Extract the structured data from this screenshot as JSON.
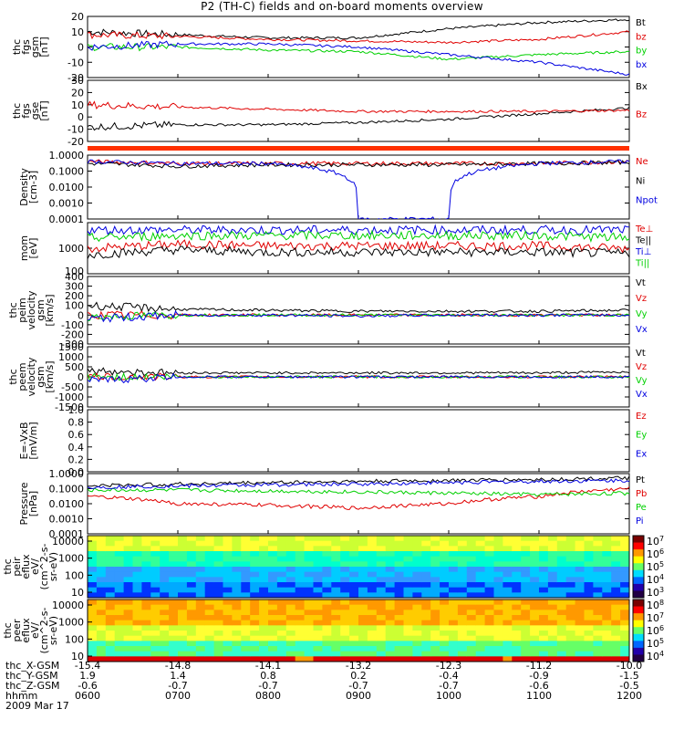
{
  "title": "P2 (TH-C) fields and on-board moments overview",
  "footer": {
    "row_labels": [
      "thc_X-GSM",
      "thc_Y-GSM",
      "thc_Z-GSM",
      "hhmm",
      "2009 Mar 17"
    ],
    "x_gsm": [
      "-15.4",
      "-14.8",
      "-14.1",
      "-13.2",
      "-12.3",
      "-11.2",
      "-10.0"
    ],
    "y_gsm": [
      "1.9",
      "1.4",
      "0.8",
      "0.2",
      "-0.4",
      "-0.9",
      "-1.5"
    ],
    "z_gsm": [
      "-0.6",
      "-0.7",
      "-0.7",
      "-0.7",
      "-0.7",
      "-0.6",
      "-0.5"
    ],
    "hhmm": [
      "0600",
      "0700",
      "0800",
      "0900",
      "1000",
      "1100",
      "1200"
    ]
  },
  "colors": {
    "black": "#000000",
    "red": "#e00000",
    "green": "#00d000",
    "blue": "#0000e0",
    "orange": "#ff3000"
  },
  "chart_data": [
    {
      "type": "line",
      "panel": "fgs_gsm",
      "ylabel_lines": [
        "thc",
        "fgs",
        "gsm",
        "[nT]"
      ],
      "ylim": [
        -20,
        20
      ],
      "yticks": [
        "20",
        "10",
        "0",
        "-10",
        "-20"
      ],
      "x": [
        "0600",
        "0700",
        "0800",
        "0900",
        "1000",
        "1100",
        "1200"
      ],
      "series": [
        {
          "name": "Bt",
          "color": "#000000",
          "values": [
            10,
            8,
            6,
            6,
            12,
            16,
            18
          ]
        },
        {
          "name": "bz",
          "color": "#e00000",
          "values": [
            8,
            7,
            5,
            4,
            3,
            5,
            10
          ]
        },
        {
          "name": "by",
          "color": "#00d000",
          "values": [
            0,
            0,
            -2,
            -3,
            -8,
            -5,
            -3
          ]
        },
        {
          "name": "bx",
          "color": "#0000e0",
          "values": [
            0,
            2,
            2,
            0,
            -5,
            -10,
            -18
          ]
        }
      ]
    },
    {
      "type": "line",
      "panel": "fgs_gse",
      "ylabel_lines": [
        "thc",
        "fgs",
        "gse",
        "[nT]"
      ],
      "ylim": [
        -25,
        30
      ],
      "yticks": [
        "30",
        "20",
        "10",
        "0",
        "-10",
        "-20"
      ],
      "x": [
        "0600",
        "0700",
        "0800",
        "0900",
        "1000",
        "1100",
        "1200"
      ],
      "series": [
        {
          "name": "Bx",
          "color": "#000000",
          "values": [
            -12,
            -10,
            -10,
            -8,
            -5,
            0,
            5
          ]
        },
        {
          "name": "Bz",
          "color": "#e00000",
          "values": [
            8,
            6,
            4,
            2,
            2,
            2,
            3
          ]
        }
      ]
    },
    {
      "type": "line",
      "panel": "density",
      "ylabel_lines": [
        "Density",
        "[cm-3]"
      ],
      "scale": "log",
      "ylim": [
        0.0001,
        1.0
      ],
      "yticks": [
        "1.0000",
        "0.1000",
        "0.0100",
        "0.0010",
        "0.0001"
      ],
      "x": [
        "0600",
        "0700",
        "0800",
        "0900",
        "1000",
        "1100",
        "1200"
      ],
      "series": [
        {
          "name": "Ne",
          "color": "#e00000",
          "values": [
            0.4,
            0.3,
            0.3,
            0.3,
            0.3,
            0.3,
            0.4
          ]
        },
        {
          "name": "Ni",
          "color": "#000000",
          "values": [
            0.3,
            0.2,
            0.25,
            0.25,
            0.25,
            0.3,
            0.35
          ]
        },
        {
          "name": "Npot",
          "color": "#0000e0",
          "values": [
            0.4,
            0.3,
            0.3,
            0.0001,
            0.0001,
            0.3,
            0.4
          ]
        }
      ]
    },
    {
      "type": "line",
      "panel": "temperature",
      "ylabel_lines": [
        "mom",
        "[eV]"
      ],
      "scale": "log",
      "yticks": [
        "1000"
      ],
      "x": [
        "0600",
        "0700",
        "0800",
        "0900",
        "1000",
        "1100",
        "1200"
      ],
      "series": [
        {
          "name": "Te⊥",
          "color": "#e00000",
          "values": [
            1500,
            2000,
            1800,
            1800,
            1800,
            1800,
            1500
          ]
        },
        {
          "name": "Te||",
          "color": "#000000",
          "values": [
            1000,
            1400,
            1200,
            1200,
            1200,
            1200,
            1100
          ]
        },
        {
          "name": "Ti⊥",
          "color": "#0000e0",
          "values": [
            5000,
            5000,
            5000,
            5000,
            5000,
            5000,
            5000
          ]
        },
        {
          "name": "Ti||",
          "color": "#00d000",
          "values": [
            3000,
            3500,
            3500,
            3500,
            3500,
            3500,
            3000
          ]
        }
      ]
    },
    {
      "type": "line",
      "panel": "peim_velocity",
      "ylabel_lines": [
        "thc",
        "peim",
        "velocity",
        "gsm",
        "[km/s]"
      ],
      "ylim": [
        -300,
        400
      ],
      "yticks": [
        "400",
        "300",
        "200",
        "100",
        "0",
        "-100",
        "-200",
        "-300"
      ],
      "extra_top_tick": "100",
      "x": [
        "0600",
        "0700",
        "0800",
        "0900",
        "1000",
        "1100",
        "1200"
      ],
      "series": [
        {
          "name": "Vt",
          "color": "#000000",
          "values": [
            100,
            60,
            50,
            40,
            40,
            40,
            50
          ]
        },
        {
          "name": "Vz",
          "color": "#e00000",
          "values": [
            0,
            0,
            0,
            0,
            0,
            0,
            0
          ]
        },
        {
          "name": "Vy",
          "color": "#00d000",
          "values": [
            -20,
            0,
            0,
            0,
            0,
            0,
            0
          ]
        },
        {
          "name": "Vx",
          "color": "#0000e0",
          "values": [
            -40,
            0,
            0,
            -10,
            0,
            0,
            0
          ]
        }
      ]
    },
    {
      "type": "line",
      "panel": "peem_velocity",
      "ylabel_lines": [
        "thc",
        "peem",
        "velocity",
        "gsm",
        "[km/s]"
      ],
      "ylim": [
        -1500,
        1500
      ],
      "yticks": [
        "1500",
        "1000",
        "500",
        "0",
        "-500",
        "-1000",
        "-1500"
      ],
      "x": [
        "0600",
        "0700",
        "0800",
        "0900",
        "1000",
        "1100",
        "1200"
      ],
      "series": [
        {
          "name": "Vt",
          "color": "#000000",
          "values": [
            300,
            200,
            200,
            200,
            200,
            200,
            250
          ]
        },
        {
          "name": "Vz",
          "color": "#e00000",
          "values": [
            0,
            0,
            0,
            0,
            0,
            0,
            0
          ]
        },
        {
          "name": "Vy",
          "color": "#00d000",
          "values": [
            0,
            0,
            0,
            0,
            0,
            0,
            0
          ]
        },
        {
          "name": "Vx",
          "color": "#0000e0",
          "values": [
            -200,
            0,
            0,
            0,
            0,
            0,
            0
          ]
        }
      ]
    },
    {
      "type": "line",
      "panel": "efield",
      "ylabel_lines": [
        "E=-VxB",
        "[mV/m]"
      ],
      "ylim": [
        0.0,
        1.0
      ],
      "yticks": [
        "1.0",
        "0.8",
        "0.6",
        "0.4",
        "0.2",
        "0.0"
      ],
      "x": [],
      "series": [
        {
          "name": "Ez",
          "color": "#e00000",
          "values": []
        },
        {
          "name": "Ey",
          "color": "#00d000",
          "values": []
        },
        {
          "name": "Ex",
          "color": "#0000e0",
          "values": []
        }
      ]
    },
    {
      "type": "line",
      "panel": "pressure",
      "ylabel_lines": [
        "Pressure",
        "[nPa]"
      ],
      "scale": "log",
      "ylim": [
        0.0001,
        1.0
      ],
      "yticks": [
        "1.0000",
        "0.1000",
        "0.0100",
        "0.0010",
        "0.0001"
      ],
      "x": [
        "0600",
        "0700",
        "0800",
        "0900",
        "1000",
        "1100",
        "1200"
      ],
      "series": [
        {
          "name": "Pt",
          "color": "#000000",
          "values": [
            0.15,
            0.2,
            0.25,
            0.3,
            0.35,
            0.4,
            0.5
          ]
        },
        {
          "name": "Pb",
          "color": "#e00000",
          "values": [
            0.03,
            0.01,
            0.008,
            0.005,
            0.01,
            0.03,
            0.1
          ]
        },
        {
          "name": "Pe",
          "color": "#00d000",
          "values": [
            0.08,
            0.08,
            0.07,
            0.06,
            0.05,
            0.04,
            0.05
          ]
        },
        {
          "name": "Pi",
          "color": "#0000e0",
          "values": [
            0.12,
            0.15,
            0.18,
            0.2,
            0.25,
            0.3,
            0.35
          ]
        }
      ]
    },
    {
      "type": "heatmap",
      "panel": "peir_efd",
      "ylabel_lines": [
        "thc",
        "peir",
        "eflux",
        "eV/",
        "(cm^2-s-",
        "sr-eV)"
      ],
      "scale": "log",
      "yticks": [
        "10000",
        "1000",
        "100",
        "10"
      ],
      "colorbar_ticks": [
        "10^7",
        "10^6",
        "10^5",
        "10^4",
        "10^3"
      ]
    },
    {
      "type": "heatmap",
      "panel": "peer_efd",
      "ylabel_lines": [
        "thc",
        "peer",
        "eflux",
        "eV/",
        "(cm^2-s-",
        "sr-eV)"
      ],
      "scale": "log",
      "yticks": [
        "10000",
        "1000",
        "100",
        "10"
      ],
      "colorbar_ticks": [
        "10^8",
        "10^7",
        "10^6",
        "10^5",
        "10^4"
      ]
    }
  ]
}
